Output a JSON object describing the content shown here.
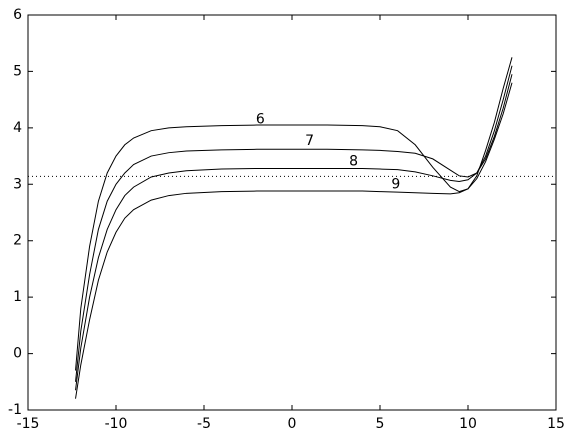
{
  "chart_data": {
    "type": "line",
    "x": [
      -12.3,
      -12,
      -11.5,
      -11,
      -10.5,
      -10,
      -9.5,
      -9,
      -8,
      -7,
      -6,
      -4,
      -2,
      0,
      2,
      4,
      5,
      6,
      7,
      8,
      9,
      9.5,
      10,
      10.5,
      11,
      11.5,
      12,
      12.5
    ],
    "series": [
      {
        "color": "#000000",
        "values": [
          -0.3,
          0.8,
          1.9,
          2.7,
          3.2,
          3.5,
          3.7,
          3.82,
          3.95,
          4.0,
          4.02,
          4.04,
          4.05,
          4.05,
          4.05,
          4.04,
          4.02,
          3.95,
          3.7,
          3.3,
          2.95,
          2.87,
          2.92,
          3.15,
          3.6,
          4.1,
          4.7,
          5.25
        ]
      },
      {
        "color": "#000000",
        "values": [
          -0.5,
          0.4,
          1.4,
          2.2,
          2.7,
          3.0,
          3.2,
          3.35,
          3.5,
          3.56,
          3.59,
          3.61,
          3.62,
          3.62,
          3.62,
          3.61,
          3.6,
          3.58,
          3.55,
          3.45,
          3.25,
          3.15,
          3.13,
          3.2,
          3.5,
          3.95,
          4.5,
          5.1
        ]
      },
      {
        "color": "#000000",
        "values": [
          -0.65,
          0.1,
          1.0,
          1.7,
          2.2,
          2.55,
          2.8,
          2.95,
          3.13,
          3.2,
          3.24,
          3.27,
          3.28,
          3.28,
          3.28,
          3.28,
          3.27,
          3.26,
          3.22,
          3.15,
          3.07,
          3.05,
          3.08,
          3.2,
          3.45,
          3.85,
          4.35,
          4.95
        ]
      },
      {
        "color": "#000000",
        "values": [
          -0.8,
          -0.2,
          0.6,
          1.3,
          1.8,
          2.15,
          2.4,
          2.55,
          2.72,
          2.8,
          2.84,
          2.87,
          2.88,
          2.88,
          2.88,
          2.88,
          2.87,
          2.86,
          2.85,
          2.84,
          2.83,
          2.85,
          2.92,
          3.1,
          3.4,
          3.8,
          4.25,
          4.8
        ]
      }
    ],
    "annotations": [
      {
        "text": "6",
        "x": -1.8,
        "y": 4.15
      },
      {
        "text": "7",
        "x": 1,
        "y": 3.77
      },
      {
        "text": "8",
        "x": 3.5,
        "y": 3.4
      },
      {
        "text": "9",
        "x": 5.9,
        "y": 3.0
      }
    ],
    "reference_line": {
      "y": 3.14,
      "style": "dotted"
    },
    "xlim": [
      -15,
      15
    ],
    "xticks": [
      -15,
      -10,
      -5,
      0,
      5,
      10,
      15
    ],
    "ylim": [
      -1,
      6
    ],
    "yticks": [
      -1,
      0,
      1,
      2,
      3,
      4,
      5,
      6
    ],
    "grid": false
  }
}
